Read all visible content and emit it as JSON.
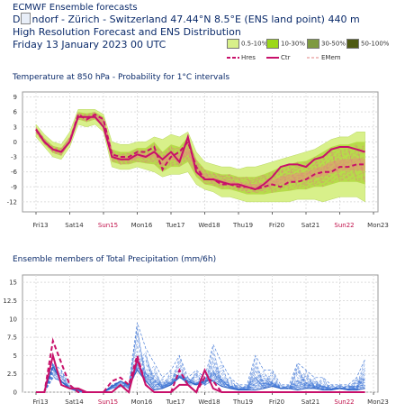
{
  "header": {
    "line1": "ECMWF Ensemble forecasts",
    "line2_pre": "D",
    "line2_post": "ndorf - Zürich - Switzerland 47.44°N 8.5°E (ENS land point) 440 m",
    "line3": "High Resolution Forecast and ENS Distribution",
    "line4": "Friday 13 January 2023 00 UTC"
  },
  "legend": {
    "prob": [
      {
        "label": "0.5-10%",
        "color": "#d8f08a"
      },
      {
        "label": "10-30%",
        "color": "#9cd81a"
      },
      {
        "label": "30-50%",
        "color": "#7e9a40"
      },
      {
        "label": "50-100%",
        "color": "#4e5a12"
      }
    ],
    "lines": [
      {
        "label": "Hres",
        "color": "#c8106a"
      },
      {
        "label": "Ctr",
        "color": "#c8106a"
      },
      {
        "label": "EMem",
        "color": "#e08080"
      }
    ]
  },
  "chart_data": [
    {
      "type": "area",
      "title": "Temperature at 850 hPa - Probability for 1°C intervals",
      "ylim": [
        -14,
        10
      ],
      "yticks": [
        9,
        6,
        3,
        0,
        -3,
        -6,
        -9,
        -12
      ],
      "xticks": [
        {
          "label": "Fri13",
          "red": false
        },
        {
          "label": "Sat14",
          "red": false
        },
        {
          "label": "Sun15",
          "red": true
        },
        {
          "label": "Mon16",
          "red": false
        },
        {
          "label": "Tue17",
          "red": false
        },
        {
          "label": "Wed18",
          "red": false
        },
        {
          "label": "Thu19",
          "red": false
        },
        {
          "label": "Fri20",
          "red": false
        },
        {
          "label": "Sat21",
          "red": false
        },
        {
          "label": "Sun22",
          "red": true
        },
        {
          "label": "Mon23",
          "red": false
        }
      ],
      "x_days": [
        0,
        0.25,
        0.5,
        0.75,
        1,
        1.25,
        1.5,
        1.75,
        2,
        2.25,
        2.5,
        2.75,
        3,
        3.25,
        3.5,
        3.75,
        4,
        4.25,
        4.5,
        4.75,
        5,
        5.25,
        5.5,
        5.75,
        6,
        6.25,
        6.5,
        6.75,
        7,
        7.25,
        7.5,
        7.75,
        8,
        8.25,
        8.5,
        8.75,
        9,
        9.25,
        9.5,
        9.75
      ],
      "series": [
        {
          "name": "Hres",
          "values": [
            2.5,
            0,
            -1.5,
            -2,
            0,
            5.5,
            4.5,
            5.5,
            4.5,
            -2.5,
            -3,
            -3,
            -2,
            -2,
            -1,
            -5.5,
            -3,
            -2,
            0,
            -5,
            -7.5,
            -7.5,
            -8.5,
            -8.5,
            -9,
            -9,
            -9.5,
            -9,
            -8.5,
            -9,
            -8,
            -8,
            -7.5,
            -6.5,
            -6,
            -6,
            -5,
            -5,
            -4.5,
            -4.5
          ]
        },
        {
          "name": "Ctr",
          "values": [
            2.5,
            0,
            -1.5,
            -2,
            0,
            5,
            5,
            5,
            3,
            -3,
            -3.5,
            -3.5,
            -2.5,
            -3,
            -2,
            -3.5,
            -2,
            -4,
            1,
            -6,
            -7.5,
            -7.5,
            -8,
            -8.5,
            -8.5,
            -9,
            -9.5,
            -8.5,
            -7,
            -5,
            -4.5,
            -4.5,
            -5,
            -3.5,
            -3,
            -1.5,
            -1,
            -1,
            -1.5,
            -2
          ]
        }
      ],
      "band_outer": {
        "upper": [
          3.5,
          1.5,
          0,
          -0.5,
          2,
          6.5,
          6.5,
          6.5,
          5.5,
          0,
          -0.5,
          -0.5,
          0,
          0,
          1,
          0.5,
          1.5,
          1,
          2,
          -2,
          -4,
          -4.5,
          -5,
          -5,
          -5.5,
          -5,
          -5,
          -4.5,
          -4,
          -3.5,
          -3,
          -2.5,
          -2,
          -1.5,
          -0.5,
          0.5,
          1,
          1,
          2,
          2
        ],
        "lower": [
          1,
          -1,
          -3,
          -3.5,
          -1,
          3.5,
          3,
          3.5,
          2,
          -5,
          -5.5,
          -5.5,
          -5,
          -5.5,
          -6,
          -7,
          -6.5,
          -6.5,
          -6,
          -8.5,
          -9.5,
          -10,
          -11,
          -11,
          -11.5,
          -12,
          -12,
          -12,
          -12,
          -12,
          -12,
          -11.5,
          -11.5,
          -11.5,
          -12,
          -11.5,
          -11,
          -11,
          -11,
          -12
        ]
      },
      "band_inner": {
        "upper": [
          3,
          0.7,
          -0.8,
          -1.2,
          1,
          6,
          5.7,
          6,
          5,
          -1.5,
          -2,
          -2,
          -1.2,
          -1.2,
          0,
          -2,
          -0.5,
          -1,
          1,
          -3.5,
          -5.5,
          -6,
          -6.5,
          -6.5,
          -7,
          -7,
          -7,
          -6.5,
          -5.8,
          -5,
          -4.5,
          -4,
          -3.8,
          -3,
          -2,
          -1,
          -0.5,
          -0.5,
          0,
          0
        ],
        "lower": [
          1.8,
          -0.5,
          -2.2,
          -2.8,
          -0.2,
          4.5,
          4,
          4.5,
          3,
          -4,
          -4.5,
          -4.5,
          -4,
          -4.3,
          -4.5,
          -6,
          -5,
          -5,
          -4,
          -7,
          -8.5,
          -8.8,
          -9.5,
          -9.5,
          -10,
          -10.5,
          -10.5,
          -10.5,
          -10.2,
          -10,
          -9.8,
          -9.5,
          -9.5,
          -9,
          -9,
          -8.5,
          -8,
          -8,
          -8,
          -8.5
        ]
      }
    },
    {
      "type": "line",
      "title": "Ensemble members of Total Precipitation (mm/6h)",
      "ylim": [
        0,
        16
      ],
      "yticks": [
        15,
        12.5,
        10,
        7.5,
        5,
        2.5,
        0
      ],
      "xticks": [
        "Fri13",
        "Sat14",
        "Sun15",
        "Mon16",
        "Tue17",
        "Wed18",
        "Thu19",
        "Fri20",
        "Sat21",
        "Sun22",
        "Mon23"
      ],
      "x_days": [
        0,
        0.25,
        0.5,
        0.75,
        1,
        1.25,
        1.5,
        1.75,
        2,
        2.25,
        2.5,
        2.75,
        3,
        3.25,
        3.5,
        3.75,
        4,
        4.25,
        4.5,
        4.75,
        5,
        5.25,
        5.5,
        5.75,
        6,
        6.25,
        6.5,
        6.75,
        7,
        7.25,
        7.5,
        7.75,
        8,
        8.25,
        8.5,
        8.75,
        9,
        9.25,
        9.5,
        9.75
      ],
      "series": [
        {
          "name": "Hres",
          "values": [
            0,
            0,
            7,
            4,
            1,
            0,
            0,
            0,
            0,
            1.5,
            2,
            1,
            5,
            1,
            0,
            0,
            0,
            3,
            1,
            0,
            2,
            1.5,
            0,
            0,
            0,
            0,
            0,
            0,
            0,
            0,
            0,
            0,
            0,
            0,
            0,
            0,
            0,
            0,
            0,
            0
          ]
        },
        {
          "name": "Ctr",
          "values": [
            0,
            0,
            5,
            1,
            0.5,
            0.5,
            0,
            0,
            0,
            0,
            1,
            0,
            4.5,
            1,
            0,
            0,
            0,
            1,
            1,
            0,
            3,
            0.5,
            0,
            0,
            0,
            0,
            0,
            0,
            0,
            0,
            0,
            0,
            0,
            0,
            0,
            0,
            0,
            0,
            0,
            0
          ]
        },
        {
          "name": "EMem",
          "values": [
            0,
            0,
            3.5,
            1.5,
            0.5,
            0.3,
            0,
            0,
            0,
            0.8,
            1.5,
            1,
            3,
            1.5,
            0.3,
            0.5,
            1,
            2,
            1.5,
            1,
            1.5,
            1.5,
            0.8,
            0.5,
            0.3,
            0.3,
            0.3,
            0.5,
            0.8,
            0.5,
            0.5,
            0.3,
            0.5,
            0.5,
            0.3,
            0.3,
            0.5,
            0.3,
            0.3,
            0.5
          ]
        },
        {
          "name": "max",
          "values": [
            0,
            0,
            4,
            3,
            1,
            0,
            0,
            0,
            0,
            1,
            1.5,
            1,
            9.5,
            6,
            4,
            2,
            3,
            5,
            2,
            3,
            2,
            6.5,
            4,
            2,
            1,
            1,
            5,
            3,
            3,
            1,
            1,
            4,
            3,
            2,
            2,
            1,
            1,
            1,
            2,
            4.5
          ]
        }
      ]
    }
  ],
  "titles": {
    "top": "Temperature at 850 hPa - Probability for 1°C intervals",
    "bottom": "Ensemble members of Total Precipitation (mm/6h)"
  }
}
